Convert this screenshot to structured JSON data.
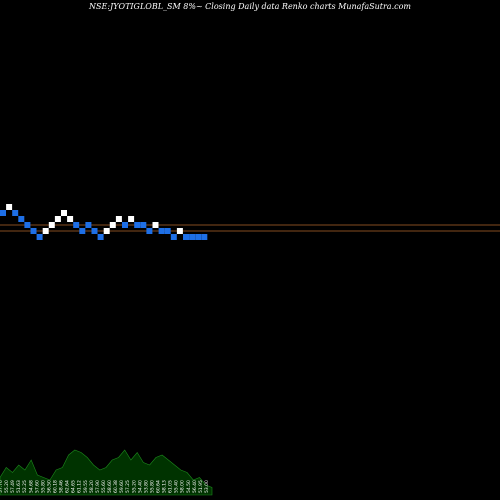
{
  "chart_data": {
    "type": "renko",
    "title": "NSE:JYOTIGLOBL_SM 8%~  Closing Daily data  Renko  charts MunafaSutra.com",
    "colors": {
      "up_brick": "#ffffff",
      "down_brick": "#1e6fe6",
      "reference_line": "#b0652a",
      "volume_area": "#003300",
      "volume_outline": "#1c8a1c",
      "background": "#000000"
    },
    "bricks": [
      {
        "dir": "down",
        "level": 0
      },
      {
        "dir": "up",
        "level": 1
      },
      {
        "dir": "down",
        "level": 0
      },
      {
        "dir": "down",
        "level": -1
      },
      {
        "dir": "down",
        "level": -2
      },
      {
        "dir": "down",
        "level": -3
      },
      {
        "dir": "down",
        "level": -4
      },
      {
        "dir": "up",
        "level": -3
      },
      {
        "dir": "up",
        "level": -2
      },
      {
        "dir": "up",
        "level": -1
      },
      {
        "dir": "up",
        "level": 0
      },
      {
        "dir": "up",
        "level": -1
      },
      {
        "dir": "down",
        "level": -2
      },
      {
        "dir": "down",
        "level": -3
      },
      {
        "dir": "down",
        "level": -2
      },
      {
        "dir": "down",
        "level": -3
      },
      {
        "dir": "down",
        "level": -4
      },
      {
        "dir": "up",
        "level": -3
      },
      {
        "dir": "up",
        "level": -2
      },
      {
        "dir": "up",
        "level": -1
      },
      {
        "dir": "down",
        "level": -2
      },
      {
        "dir": "up",
        "level": -1
      },
      {
        "dir": "down",
        "level": -2
      },
      {
        "dir": "down",
        "level": -2
      },
      {
        "dir": "down",
        "level": -3
      },
      {
        "dir": "up",
        "level": -2
      },
      {
        "dir": "down",
        "level": -3
      },
      {
        "dir": "down",
        "level": -3
      },
      {
        "dir": "down",
        "level": -4
      },
      {
        "dir": "up",
        "level": -3
      },
      {
        "dir": "down",
        "level": -4
      },
      {
        "dir": "down",
        "level": -4
      },
      {
        "dir": "down",
        "level": -4
      },
      {
        "dir": "down",
        "level": -4
      }
    ],
    "reference_lines": [
      -2,
      -3
    ],
    "volume_labels": [
      "57.70",
      "55.20",
      "57.49",
      "51.63",
      "52.25",
      "54.68",
      "57.60",
      "55.80",
      "56.50",
      "60.18",
      "58.46",
      "62.64",
      "64.65",
      "61.12",
      "59.55",
      "58.20",
      "57.90",
      "55.60",
      "58.60",
      "60.38",
      "59.60",
      "57.25",
      "55.20",
      "54.40",
      "53.80",
      "55.80",
      "60.64",
      "58.13",
      "61.05",
      "55.40",
      "58.00",
      "54.50",
      "56.40",
      "51.95",
      "53.00"
    ],
    "volume": [
      0.35,
      0.55,
      0.45,
      0.6,
      0.5,
      0.7,
      0.4,
      0.35,
      0.3,
      0.5,
      0.55,
      0.8,
      0.9,
      0.85,
      0.75,
      0.6,
      0.5,
      0.55,
      0.7,
      0.75,
      0.9,
      0.7,
      0.85,
      0.65,
      0.6,
      0.75,
      0.8,
      0.7,
      0.6,
      0.5,
      0.45,
      0.3,
      0.35,
      0.2,
      0.15
    ]
  }
}
